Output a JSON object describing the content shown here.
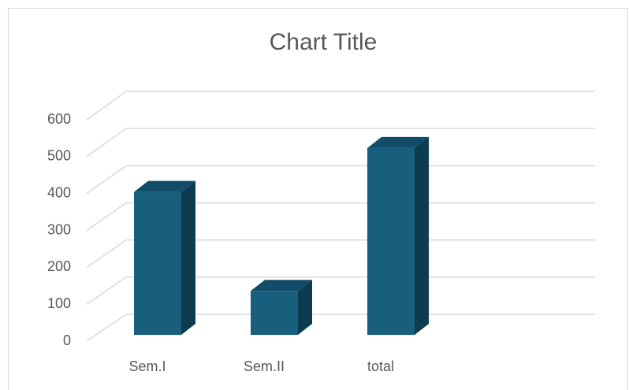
{
  "chart_data": {
    "type": "bar3d",
    "title": "Chart Title",
    "categories": [
      "Sem.I",
      "Sem.II",
      "total",
      null
    ],
    "values": [
      390,
      120,
      510,
      null
    ],
    "color": "#185f7e",
    "ylim": [
      0,
      600
    ],
    "yticks": [
      0,
      100,
      200,
      300,
      400,
      500,
      600
    ],
    "grid": true
  }
}
